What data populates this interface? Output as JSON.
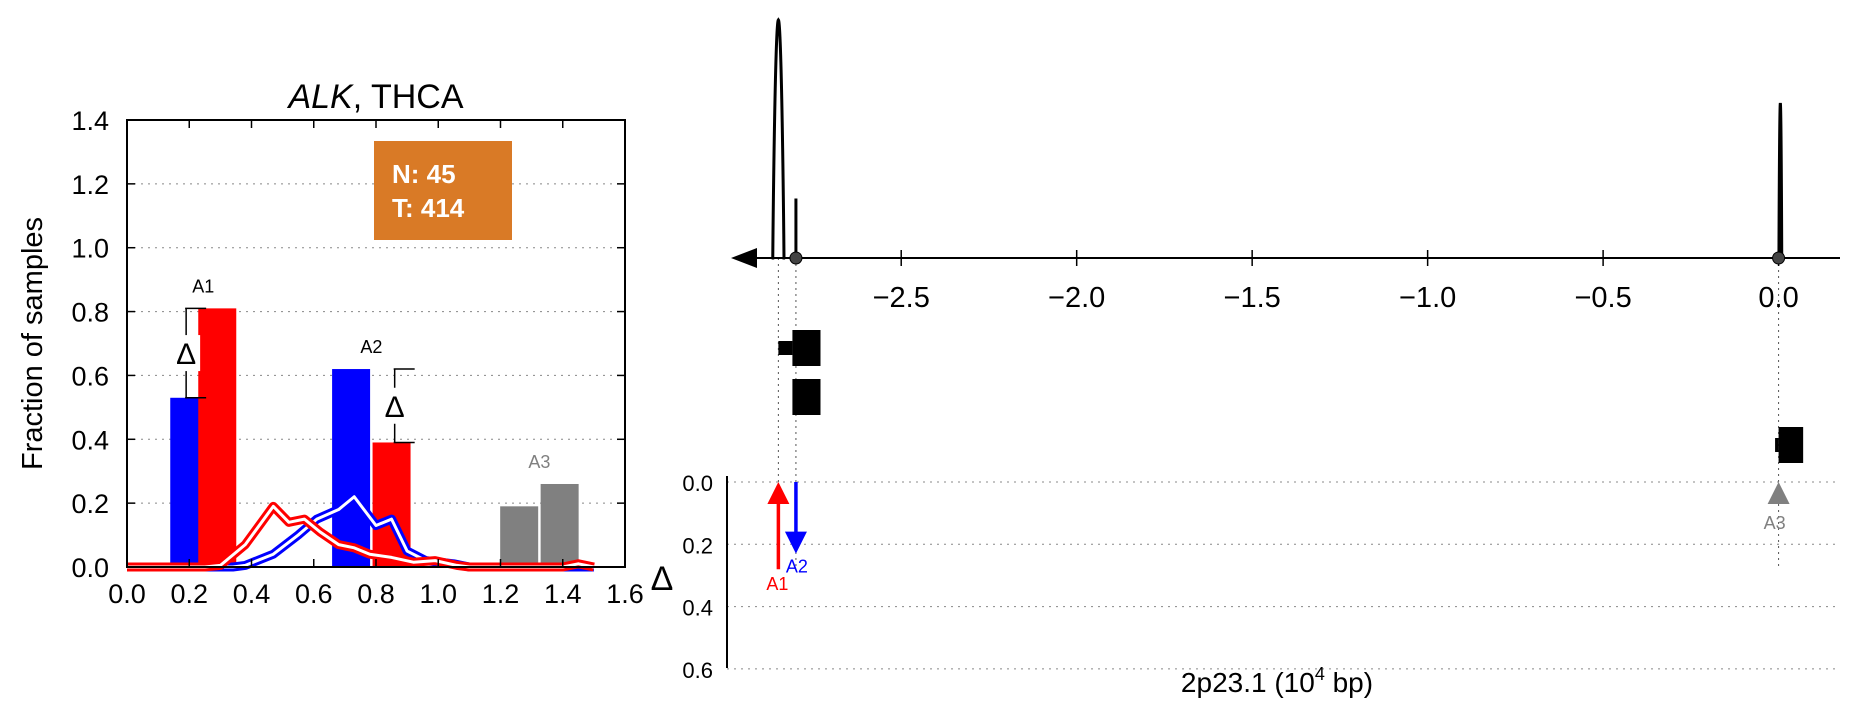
{
  "chart_data": [
    {
      "type": "bar",
      "title_italic": "ALK",
      "title_rest": ", THCA",
      "ylabel": "Fraction of samples",
      "xlim": [
        0.0,
        1.6
      ],
      "ylim": [
        0.0,
        1.4
      ],
      "xticks": [
        "0.0",
        "0.2",
        "0.4",
        "0.6",
        "0.8",
        "1.0",
        "1.2",
        "1.4",
        "1.6"
      ],
      "yticks": [
        "0.0",
        "0.2",
        "0.4",
        "0.6",
        "0.8",
        "1.0",
        "1.2",
        "1.4"
      ],
      "grid": "horizontal dotted",
      "info_box": {
        "n_label": "N: 45",
        "t_label": "T: 414",
        "color": "#d97a26"
      },
      "colors": {
        "normal": "#0000ff",
        "tumor": "#ff0000",
        "other": "#808080"
      },
      "bar_groups": [
        {
          "label": "A1",
          "label_color": "#000000",
          "bars": [
            {
              "x": 0.2,
              "value": 0.53,
              "color": "normal"
            },
            {
              "x": 0.29,
              "value": 0.81,
              "color": "tumor"
            }
          ],
          "delta": {
            "x": 0.19,
            "from": 0.53,
            "to": 0.81
          }
        },
        {
          "label": "A2",
          "label_color": "#000000",
          "bars": [
            {
              "x": 0.72,
              "value": 0.62,
              "color": "normal"
            },
            {
              "x": 0.85,
              "value": 0.39,
              "color": "tumor"
            }
          ],
          "delta": {
            "x": 0.86,
            "from": 0.39,
            "to": 0.62
          }
        },
        {
          "label": "A3",
          "label_color": "#808080",
          "bars": [
            {
              "x": 1.26,
              "value": 0.19,
              "color": "other"
            },
            {
              "x": 1.39,
              "value": 0.26,
              "color": "other"
            }
          ],
          "delta": null
        }
      ],
      "delta_symbol": "Δ",
      "series": [
        {
          "color": "normal",
          "x": [
            0.0,
            0.34,
            0.38,
            0.47,
            0.55,
            0.61,
            0.68,
            0.73,
            0.8,
            0.85,
            0.9,
            0.96,
            1.05,
            1.1,
            1.4,
            1.5
          ],
          "values": [
            0.0,
            0.0,
            0.005,
            0.04,
            0.1,
            0.15,
            0.18,
            0.22,
            0.13,
            0.15,
            0.05,
            0.02,
            0.01,
            0.0,
            0.0,
            0.0
          ]
        },
        {
          "color": "tumor",
          "x": [
            0.0,
            0.25,
            0.3,
            0.38,
            0.47,
            0.52,
            0.57,
            0.62,
            0.68,
            0.73,
            0.78,
            0.85,
            0.92,
            0.99,
            1.06,
            1.1,
            1.4,
            1.45,
            1.5
          ],
          "values": [
            0.0,
            0.0,
            0.005,
            0.07,
            0.19,
            0.14,
            0.15,
            0.11,
            0.07,
            0.06,
            0.04,
            0.03,
            0.015,
            0.02,
            0.005,
            0.0,
            0.0,
            0.01,
            0.0
          ]
        }
      ]
    },
    {
      "type": "line",
      "xlabel": "2p23.1 (10",
      "xlabel_sup": "4",
      "xlabel_end": " bp)",
      "xlim": [
        -2.985,
        0.175
      ],
      "xticks": [
        "−2.5",
        "−2.0",
        "−1.5",
        "−1.0",
        "−0.5",
        "0.0"
      ],
      "xtick_values": [
        -2.5,
        -2.0,
        -1.5,
        -1.0,
        -0.5,
        0.0
      ],
      "axis_direction_arrow": "left",
      "peaks": [
        {
          "center": -2.85,
          "width": 0.016,
          "height": 1.0
        },
        {
          "center": 0.005,
          "width": 0.004,
          "height": 0.65
        }
      ],
      "spike": {
        "x": -2.8,
        "height": 0.25
      },
      "markers_x": [
        -2.8,
        0.0
      ],
      "guide_lines_x": [
        -2.85,
        -2.8,
        0.0
      ],
      "exons": [
        {
          "x_start": -2.85,
          "x_end": -2.73,
          "level": 1,
          "thick_start": -2.81
        },
        {
          "x_start": -2.81,
          "x_end": -2.73,
          "level": 2,
          "thick_start": -2.81
        },
        {
          "x_start": -0.01,
          "x_end": 0.07,
          "level": 3,
          "thick_start": 0.0
        }
      ],
      "delta_panel": {
        "ylabel": "Δ",
        "ylim": [
          0.0,
          0.7
        ],
        "yticks": [
          "0.0",
          "0.2",
          "0.4",
          "0.6"
        ],
        "ytick_values": [
          0.0,
          0.2,
          0.4,
          0.6
        ],
        "arrows": [
          {
            "label": "A1",
            "x": -2.85,
            "value": 0.28,
            "direction": "up",
            "color": "#ff0000"
          },
          {
            "label": "A2",
            "x": -2.8,
            "value": 0.23,
            "direction": "down",
            "color": "#0000ff"
          },
          {
            "label": "A3",
            "x": 0.0,
            "value": 0.07,
            "direction": "up",
            "color": "#808080"
          }
        ]
      }
    }
  ]
}
